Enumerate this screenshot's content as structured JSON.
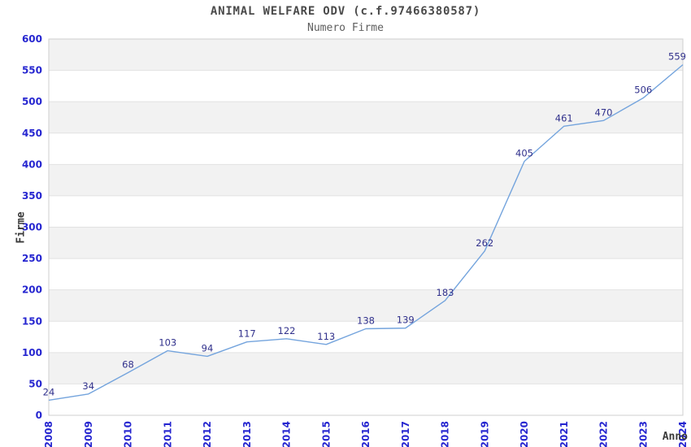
{
  "chart": {
    "title": "ANIMAL WELFARE ODV (c.f.97466380587)",
    "subtitle": "Numero Firme",
    "xlabel": "Anno",
    "ylabel": "Firme"
  },
  "chart_data": {
    "type": "line",
    "title": "ANIMAL WELFARE ODV (c.f.97466380587)",
    "subtitle": "Numero Firme",
    "xlabel": "Anno",
    "ylabel": "Firme",
    "x": [
      2008,
      2009,
      2010,
      2011,
      2012,
      2013,
      2014,
      2015,
      2016,
      2017,
      2018,
      2019,
      2020,
      2021,
      2022,
      2023,
      2024
    ],
    "series": [
      {
        "name": "Numero Firme",
        "values": [
          24,
          34,
          68,
          103,
          94,
          117,
          122,
          113,
          138,
          139,
          183,
          262,
          405,
          461,
          470,
          506,
          559
        ]
      }
    ],
    "ylim": [
      0,
      600
    ],
    "ytick_step": 50,
    "grid": "horizontal-stripes",
    "legend": "none",
    "data_labels": true,
    "colors": {
      "line": "#74a4dd",
      "data_label": "#31318c",
      "tick_label": "#2626d0",
      "band": "#f2f2f2",
      "grid_line": "#e2e2e2",
      "plot_border": "#cfcfcf",
      "title": "#4a4a4a",
      "subtitle": "#5e5e5e",
      "axis_title": "#3a3a3a"
    }
  }
}
